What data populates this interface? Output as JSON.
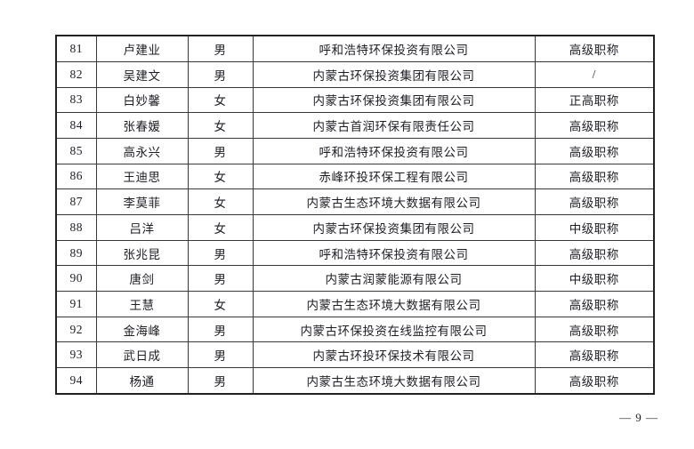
{
  "page": {
    "page_number": "— 9 —"
  },
  "colors": {
    "text": "#1d1d26",
    "table_border": "#39393d",
    "outer_border": "#222225",
    "background": "#ffffff"
  },
  "table": {
    "rows": [
      [
        "81",
        "卢建业",
        "男",
        "呼和浩特环保投资有限公司",
        "高级职称"
      ],
      [
        "82",
        "吴建文",
        "男",
        "内蒙古环保投资集团有限公司",
        "/"
      ],
      [
        "83",
        "白妙馨",
        "女",
        "内蒙古环保投资集团有限公司",
        "正高职称"
      ],
      [
        "84",
        "张春媛",
        "女",
        "内蒙古首润环保有限责任公司",
        "高级职称"
      ],
      [
        "85",
        "高永兴",
        "男",
        "呼和浩特环保投资有限公司",
        "高级职称"
      ],
      [
        "86",
        "王迪思",
        "女",
        "赤峰环投环保工程有限公司",
        "高级职称"
      ],
      [
        "87",
        "李莫菲",
        "女",
        "内蒙古生态环境大数据有限公司",
        "高级职称"
      ],
      [
        "88",
        "吕洋",
        "女",
        "内蒙古环保投资集团有限公司",
        "中级职称"
      ],
      [
        "89",
        "张兆昆",
        "男",
        "呼和浩特环保投资有限公司",
        "高级职称"
      ],
      [
        "90",
        "唐剑",
        "男",
        "内蒙古润蒙能源有限公司",
        "中级职称"
      ],
      [
        "91",
        "王慧",
        "女",
        "内蒙古生态环境大数据有限公司",
        "高级职称"
      ],
      [
        "92",
        "金海峰",
        "男",
        "内蒙古环保投资在线监控有限公司",
        "高级职称"
      ],
      [
        "93",
        "武日成",
        "男",
        "内蒙古环投环保技术有限公司",
        "高级职称"
      ],
      [
        "94",
        "杨通",
        "男",
        "内蒙古生态环境大数据有限公司",
        "高级职称"
      ]
    ]
  }
}
